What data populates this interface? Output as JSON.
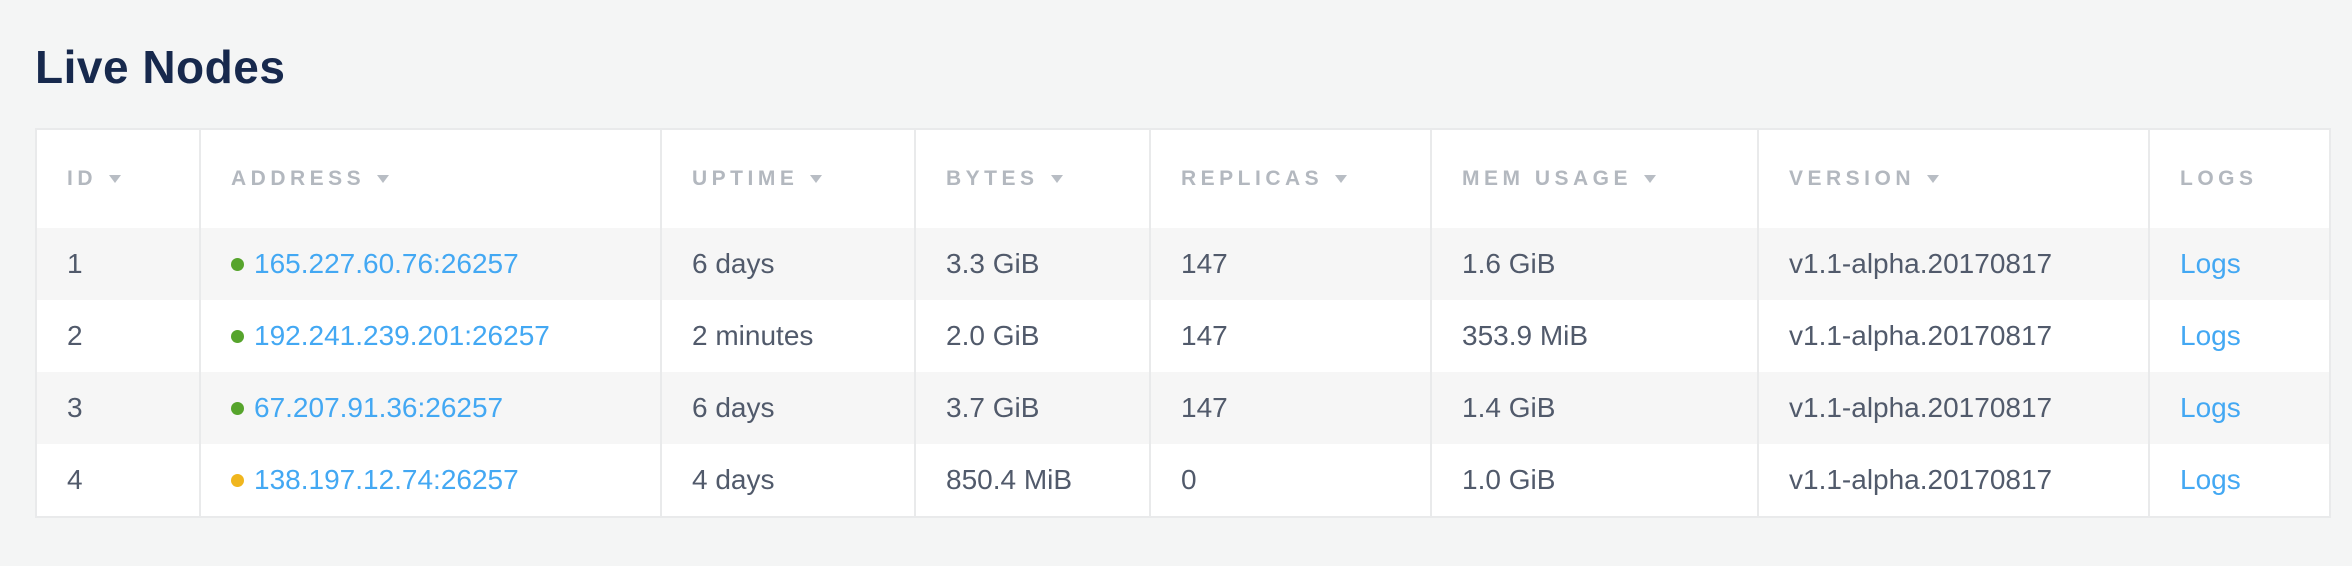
{
  "page": {
    "title": "Live Nodes"
  },
  "colors": {
    "title_text": "#17294d",
    "body_text": "#515a6b",
    "link_blue": "#43a8f3",
    "header_text": "#b3b8bf",
    "status_healthy_green": "#56a42c",
    "status_suspect_yellow": "#f0b61e",
    "alt_row_background": "#f6f6f6",
    "page_background": "#f4f5f5"
  },
  "table": {
    "columns": [
      {
        "key": "id",
        "label": "ID",
        "sortable": true
      },
      {
        "key": "address",
        "label": "ADDRESS",
        "sortable": true
      },
      {
        "key": "uptime",
        "label": "UPTIME",
        "sortable": true
      },
      {
        "key": "bytes",
        "label": "BYTES",
        "sortable": true
      },
      {
        "key": "replicas",
        "label": "REPLICAS",
        "sortable": true
      },
      {
        "key": "mem-usage",
        "label": "MEM USAGE",
        "sortable": true
      },
      {
        "key": "version",
        "label": "VERSION",
        "sortable": true
      },
      {
        "key": "logs",
        "label": "LOGS",
        "sortable": false
      }
    ],
    "rows": [
      {
        "id": "1",
        "status": "healthy",
        "status_color": "#56a42c",
        "address": "165.227.60.76:26257",
        "uptime": "6 days",
        "bytes": "3.3 GiB",
        "replicas": "147",
        "mem_usage": "1.6 GiB",
        "version": "v1.1-alpha.20170817",
        "logs_label": "Logs"
      },
      {
        "id": "2",
        "status": "healthy",
        "status_color": "#56a42c",
        "address": "192.241.239.201:26257",
        "uptime": "2 minutes",
        "bytes": "2.0 GiB",
        "replicas": "147",
        "mem_usage": "353.9 MiB",
        "version": "v1.1-alpha.20170817",
        "logs_label": "Logs"
      },
      {
        "id": "3",
        "status": "healthy",
        "status_color": "#56a42c",
        "address": "67.207.91.36:26257",
        "uptime": "6 days",
        "bytes": "3.7 GiB",
        "replicas": "147",
        "mem_usage": "1.4 GiB",
        "version": "v1.1-alpha.20170817",
        "logs_label": "Logs"
      },
      {
        "id": "4",
        "status": "suspect",
        "status_color": "#f0b61e",
        "address": "138.197.12.74:26257",
        "uptime": "4 days",
        "bytes": "850.4 MiB",
        "replicas": "0",
        "mem_usage": "1.0 GiB",
        "version": "v1.1-alpha.20170817",
        "logs_label": "Logs"
      }
    ]
  }
}
